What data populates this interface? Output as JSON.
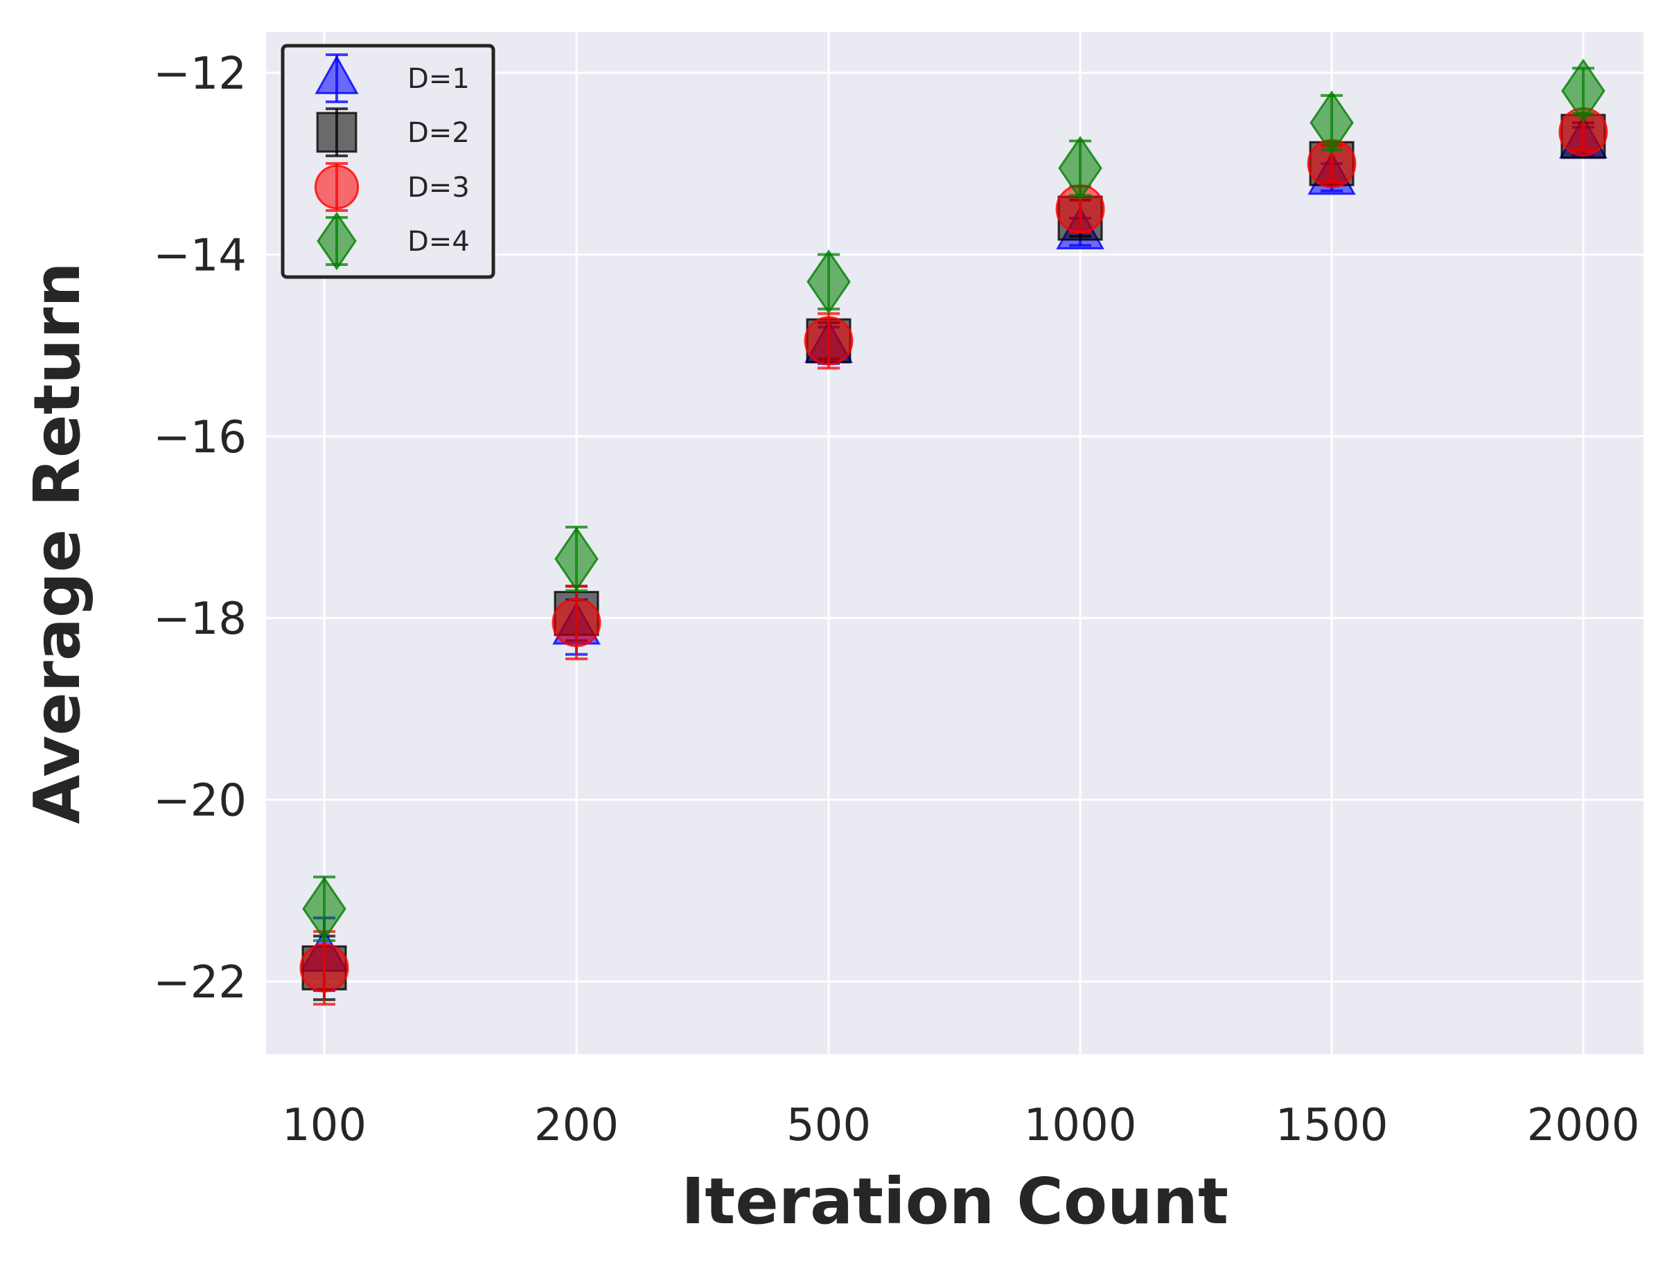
{
  "chart_data": {
    "type": "scatter",
    "title": "",
    "xlabel": "Iteration Count",
    "ylabel": "Average Return",
    "categories": [
      "100",
      "200",
      "500",
      "1000",
      "1500",
      "2000"
    ],
    "ylim": [
      -22.8,
      -11.55
    ],
    "yticks": [
      -22,
      -20,
      -18,
      -16,
      -14,
      -12
    ],
    "ytick_labels": [
      "−22",
      "−20",
      "−18",
      "−16",
      "−14",
      "−12"
    ],
    "grid": true,
    "legend_position": "top-left",
    "series": [
      {
        "name": "D=1",
        "marker": "triangle",
        "color": "#0000ff",
        "values": [
          -21.7,
          -18.1,
          -15.0,
          -13.75,
          -13.15,
          -12.75
        ],
        "errors": [
          0.4,
          0.3,
          0.2,
          0.15,
          0.15,
          0.15
        ]
      },
      {
        "name": "D=2",
        "marker": "square",
        "color": "#000000",
        "values": [
          -21.85,
          -17.95,
          -14.95,
          -13.6,
          -13.0,
          -12.7
        ],
        "errors": [
          0.35,
          0.3,
          0.2,
          0.2,
          0.2,
          0.15
        ]
      },
      {
        "name": "D=3",
        "marker": "circle",
        "color": "#ff0000",
        "values": [
          -21.85,
          -18.05,
          -14.95,
          -13.5,
          -13.0,
          -12.65
        ],
        "errors": [
          0.4,
          0.4,
          0.3,
          0.25,
          0.2,
          0.2
        ]
      },
      {
        "name": "D=4",
        "marker": "diamond",
        "color": "#008000",
        "values": [
          -21.2,
          -17.35,
          -14.3,
          -13.05,
          -12.55,
          -12.2
        ],
        "errors": [
          0.35,
          0.35,
          0.3,
          0.3,
          0.3,
          0.25
        ]
      }
    ]
  }
}
